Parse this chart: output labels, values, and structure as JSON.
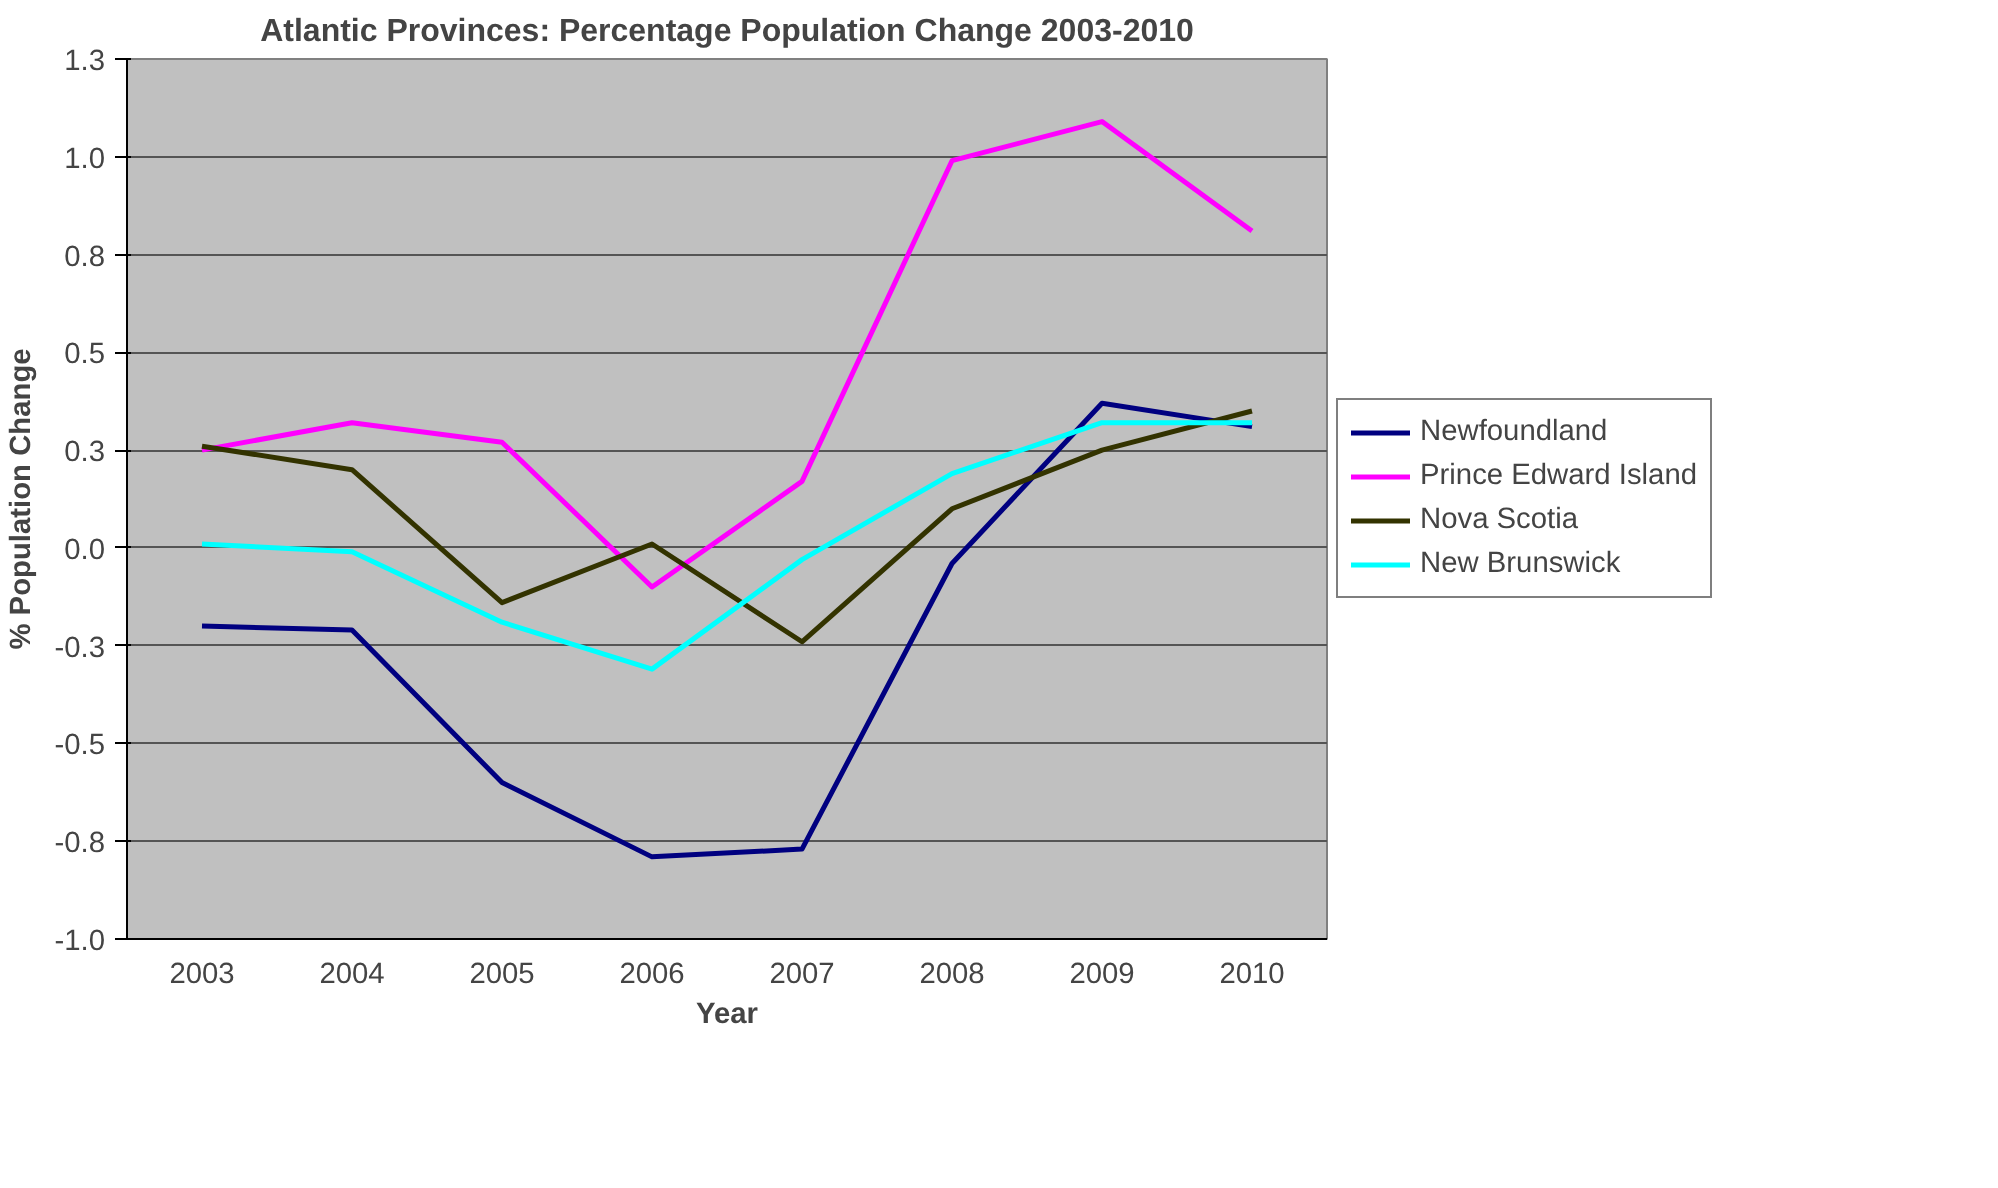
{
  "chart_data": {
    "type": "line",
    "title": "Atlantic Provinces: Percentage Population Change 2003-2010",
    "xlabel": "Year",
    "ylabel": "% Population Change",
    "categories": [
      "2003",
      "2004",
      "2005",
      "2006",
      "2007",
      "2008",
      "2009",
      "2010"
    ],
    "ylim": [
      -1.0,
      1.25
    ],
    "yticks": [
      {
        "value": -1.0,
        "label": "-1.0"
      },
      {
        "value": -0.75,
        "label": "-0.8"
      },
      {
        "value": -0.5,
        "label": "-0.5"
      },
      {
        "value": -0.25,
        "label": "-0.3"
      },
      {
        "value": 0,
        "label": "0.0"
      },
      {
        "value": 0.25,
        "label": "0.3"
      },
      {
        "value": 0.5,
        "label": "0.5"
      },
      {
        "value": 0.75,
        "label": "0.8"
      },
      {
        "value": 1.0,
        "label": "1.0"
      },
      {
        "value": 1.25,
        "label": "1.3"
      }
    ],
    "grid": "y",
    "legend": "right",
    "marker": "none",
    "series": [
      {
        "name": "Newfoundland",
        "color": "#000080",
        "values": [
          -0.2,
          -0.21,
          -0.6,
          -0.79,
          -0.77,
          -0.04,
          0.37,
          0.31
        ]
      },
      {
        "name": "Prince Edward Island",
        "color": "#ff00ff",
        "values": [
          0.25,
          0.32,
          0.27,
          -0.1,
          0.17,
          0.99,
          1.09,
          0.81
        ]
      },
      {
        "name": "Nova Scotia",
        "color": "#333300",
        "values": [
          0.26,
          0.2,
          -0.14,
          0.01,
          -0.24,
          0.1,
          0.25,
          0.35
        ]
      },
      {
        "name": "New Brunswick",
        "color": "#00ffff",
        "values": [
          0.01,
          -0.01,
          -0.19,
          -0.31,
          -0.03,
          0.19,
          0.32,
          0.32
        ]
      }
    ]
  }
}
